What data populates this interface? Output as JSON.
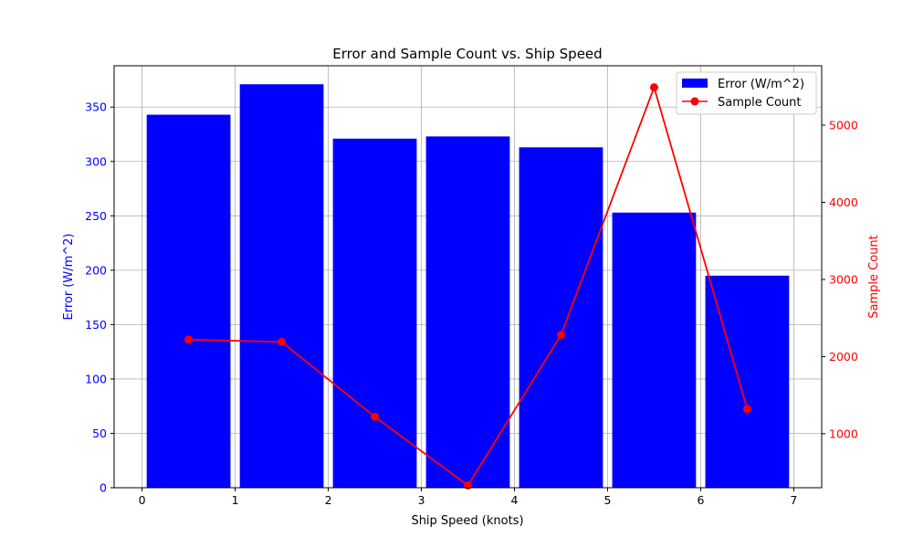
{
  "chart_data": {
    "type": "bar",
    "title": "Error and Sample Count vs. Ship Speed",
    "xlabel": "Ship Speed (knots)",
    "ylabel": "Error (W/m^2)",
    "y2label": "Sample Count",
    "xlim": [
      -0.3,
      7.3
    ],
    "ylim": [
      0,
      388
    ],
    "y2lim": [
      300,
      5770
    ],
    "xticks": [
      0,
      1,
      2,
      3,
      4,
      5,
      6,
      7
    ],
    "yticks": [
      0,
      50,
      100,
      150,
      200,
      250,
      300,
      350
    ],
    "y2ticks": [
      1000,
      2000,
      3000,
      4000,
      5000
    ],
    "grid": true,
    "legend_position": "top-right",
    "series": [
      {
        "name": "Error (W/m^2)",
        "type": "bar",
        "axis": "left",
        "color": "#0000ff",
        "bar_width": 0.9,
        "x": [
          0.5,
          1.5,
          2.5,
          3.5,
          4.5,
          5.5,
          6.5
        ],
        "values": [
          343,
          371,
          321,
          323,
          313,
          253,
          195
        ]
      },
      {
        "name": "Sample Count",
        "type": "line",
        "axis": "right",
        "color": "#ff0000",
        "marker": "circle",
        "x": [
          0.5,
          1.5,
          2.5,
          3.5,
          4.5,
          5.5,
          6.5
        ],
        "values": [
          2220,
          2190,
          1220,
          330,
          2280,
          5490,
          1320
        ]
      }
    ],
    "colors": {
      "left_axis": "#0000ff",
      "right_axis": "#ff0000",
      "grid": "#b0b0b0"
    }
  }
}
